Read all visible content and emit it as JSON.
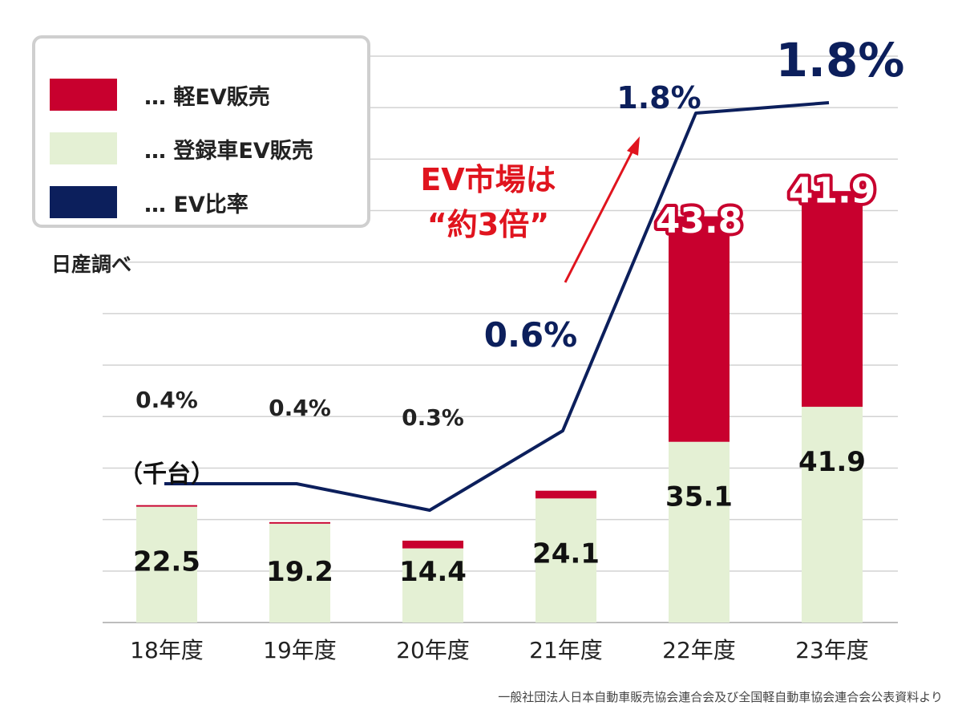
{
  "legend": [
    {
      "label": "… 軽EV販売",
      "color": "#c8002e"
    },
    {
      "label": "… 登録車EV販売",
      "color": "#e4f0d4"
    },
    {
      "label": "… EV比率",
      "color": "#0c1f5c"
    }
  ],
  "source_label": "日産調べ",
  "unit_label": "（千台）",
  "annotation": {
    "line1": "EV市場は",
    "line2": "“約3倍”"
  },
  "footnote": "一般社団法人日本自動車販売協会連合会及び全国軽自動車協会連合会公表資料より",
  "chart_data": {
    "type": "bar",
    "categories": [
      "18年度",
      "19年度",
      "20年度",
      "21年度",
      "22年度",
      "23年度"
    ],
    "series": [
      {
        "name": "登録車EV販売",
        "values": [
          22.5,
          19.2,
          14.4,
          24.1,
          35.1,
          41.9
        ],
        "labels": [
          "22.5",
          "19.2",
          "14.4",
          "24.1",
          "35.1",
          "41.9"
        ],
        "color": "#e4f0d4"
      },
      {
        "name": "軽EV販売",
        "values": [
          0.3,
          0.3,
          1.5,
          1.5,
          43.8,
          41.9
        ],
        "labels": [
          "",
          "",
          "",
          "",
          "43.8",
          "41.9"
        ],
        "color": "#c8002e"
      }
    ],
    "line_series": {
      "name": "EV比率",
      "values": [
        0.4,
        0.4,
        0.3,
        0.6,
        1.8,
        1.8
      ],
      "labels": [
        "0.4%",
        "0.4%",
        "0.3%",
        "0.6%",
        "1.8%",
        "1.8%"
      ],
      "color": "#0c1f5c"
    },
    "ylim": [
      0,
      110
    ],
    "grid": true
  }
}
